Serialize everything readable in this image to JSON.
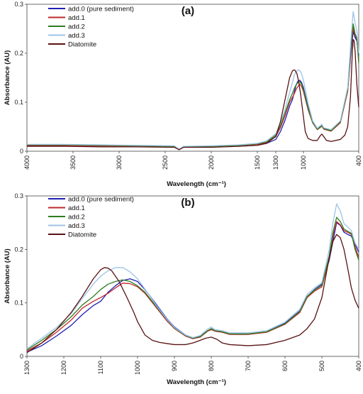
{
  "chart_data": [
    {
      "type": "line",
      "panel_label": "(a)",
      "xlabel": "Wavelength (cm⁻¹)",
      "ylabel": "Absorbance (AU)",
      "x_reversed": true,
      "xlim": [
        4000,
        400
      ],
      "ylim": [
        0,
        0.3
      ],
      "x_ticks": [
        4000,
        3500,
        3000,
        2500,
        2000,
        1500,
        1300,
        1000,
        400
      ],
      "x_tick_labels": [
        "4000",
        "3500",
        "3000",
        "2500",
        "2000",
        "1500",
        "1300",
        "1000",
        "400"
      ],
      "y_ticks": [
        0,
        0.1,
        0.2,
        0.3
      ],
      "y_tick_labels": [
        "0",
        "0.1",
        "0.2",
        "0.3"
      ],
      "legend_position": "top-left",
      "series": [
        {
          "name": "add.0 (pure sediment)",
          "color": "#1f1fb4",
          "x": [
            4000,
            3600,
            3200,
            2800,
            2400,
            2350,
            2300,
            2000,
            1700,
            1500,
            1400,
            1300,
            1250,
            1200,
            1150,
            1120,
            1100,
            1080,
            1060,
            1040,
            1020,
            1000,
            950,
            900,
            850,
            800,
            780,
            700,
            600,
            520,
            480,
            460,
            440,
            420,
            400
          ],
          "y": [
            0.012,
            0.012,
            0.011,
            0.011,
            0.01,
            0.004,
            0.009,
            0.01,
            0.012,
            0.014,
            0.016,
            0.024,
            0.04,
            0.063,
            0.092,
            0.105,
            0.12,
            0.135,
            0.143,
            0.145,
            0.14,
            0.13,
            0.09,
            0.06,
            0.045,
            0.052,
            0.046,
            0.042,
            0.06,
            0.125,
            0.21,
            0.245,
            0.232,
            0.225,
            0.195
          ]
        },
        {
          "name": "add.1",
          "color": "#c0282a",
          "x": [
            4000,
            3600,
            3200,
            2800,
            2400,
            2350,
            2300,
            2000,
            1700,
            1500,
            1400,
            1300,
            1250,
            1200,
            1150,
            1120,
            1100,
            1080,
            1060,
            1040,
            1020,
            1000,
            950,
            900,
            850,
            800,
            780,
            700,
            600,
            520,
            480,
            460,
            440,
            420,
            400
          ],
          "y": [
            0.012,
            0.012,
            0.011,
            0.011,
            0.01,
            0.004,
            0.009,
            0.01,
            0.012,
            0.014,
            0.018,
            0.03,
            0.048,
            0.072,
            0.1,
            0.11,
            0.117,
            0.126,
            0.132,
            0.137,
            0.132,
            0.122,
            0.085,
            0.058,
            0.044,
            0.051,
            0.045,
            0.041,
            0.058,
            0.122,
            0.22,
            0.252,
            0.236,
            0.228,
            0.185
          ]
        },
        {
          "name": "add.2",
          "color": "#2e7d1f",
          "x": [
            4000,
            3600,
            3200,
            2800,
            2400,
            2350,
            2300,
            2000,
            1700,
            1500,
            1400,
            1300,
            1250,
            1200,
            1150,
            1120,
            1100,
            1080,
            1060,
            1040,
            1020,
            1000,
            950,
            900,
            850,
            800,
            780,
            700,
            600,
            520,
            480,
            460,
            440,
            420,
            400
          ],
          "y": [
            0.013,
            0.013,
            0.012,
            0.011,
            0.01,
            0.004,
            0.009,
            0.01,
            0.012,
            0.015,
            0.019,
            0.033,
            0.052,
            0.078,
            0.105,
            0.118,
            0.128,
            0.135,
            0.14,
            0.142,
            0.137,
            0.126,
            0.088,
            0.059,
            0.045,
            0.052,
            0.046,
            0.042,
            0.06,
            0.126,
            0.225,
            0.26,
            0.24,
            0.23,
            0.18
          ]
        },
        {
          "name": "add.3",
          "color": "#9ec3e8",
          "x": [
            4000,
            3600,
            3200,
            2800,
            2400,
            2350,
            2300,
            2000,
            1700,
            1500,
            1400,
            1300,
            1250,
            1200,
            1150,
            1120,
            1100,
            1080,
            1060,
            1040,
            1020,
            1000,
            950,
            900,
            850,
            800,
            780,
            700,
            600,
            520,
            480,
            460,
            440,
            420,
            400
          ],
          "y": [
            0.014,
            0.014,
            0.013,
            0.012,
            0.011,
            0.004,
            0.01,
            0.011,
            0.013,
            0.016,
            0.021,
            0.036,
            0.058,
            0.085,
            0.12,
            0.14,
            0.155,
            0.162,
            0.166,
            0.165,
            0.158,
            0.145,
            0.098,
            0.062,
            0.047,
            0.055,
            0.048,
            0.044,
            0.062,
            0.13,
            0.24,
            0.285,
            0.262,
            0.245,
            0.2
          ]
        },
        {
          "name": "Diatomite",
          "color": "#5a1212",
          "x": [
            4000,
            3600,
            3200,
            2800,
            2400,
            2350,
            2300,
            2000,
            1700,
            1500,
            1400,
            1300,
            1250,
            1200,
            1150,
            1120,
            1100,
            1090,
            1070,
            1050,
            1030,
            1000,
            980,
            950,
            900,
            850,
            820,
            800,
            780,
            750,
            700,
            600,
            550,
            520,
            490,
            470,
            460,
            450,
            440,
            420,
            400
          ],
          "y": [
            0.01,
            0.01,
            0.009,
            0.009,
            0.008,
            0.003,
            0.008,
            0.008,
            0.01,
            0.012,
            0.016,
            0.03,
            0.06,
            0.105,
            0.15,
            0.164,
            0.166,
            0.165,
            0.158,
            0.14,
            0.115,
            0.07,
            0.04,
            0.026,
            0.022,
            0.022,
            0.031,
            0.035,
            0.03,
            0.022,
            0.02,
            0.024,
            0.033,
            0.05,
            0.11,
            0.2,
            0.228,
            0.225,
            0.205,
            0.135,
            0.09
          ]
        }
      ]
    },
    {
      "type": "line",
      "panel_label": "(b)",
      "xlabel": "Wavelength (cm⁻¹)",
      "ylabel": "Absorbance (AU)",
      "x_reversed": true,
      "xlim": [
        1300,
        400
      ],
      "ylim": [
        0,
        0.3
      ],
      "x_ticks": [
        1300,
        1200,
        1100,
        1000,
        900,
        800,
        700,
        600,
        500,
        400
      ],
      "x_tick_labels": [
        "1300",
        "1200",
        "1100",
        "1000",
        "900",
        "800",
        "700",
        "600",
        "500",
        "400"
      ],
      "y_ticks": [
        0,
        0.1,
        0.2,
        0.3
      ],
      "y_tick_labels": [
        "0",
        "0.1",
        "0.2",
        "0.3"
      ],
      "legend_position": "top-left",
      "series": [
        {
          "name": "add.0 (pure sediment)",
          "color": "#1f1fb4",
          "x": [
            1300,
            1260,
            1220,
            1180,
            1150,
            1120,
            1100,
            1080,
            1060,
            1040,
            1020,
            1000,
            980,
            950,
            920,
            900,
            870,
            850,
            830,
            810,
            800,
            790,
            770,
            750,
            700,
            650,
            600,
            560,
            540,
            520,
            500,
            480,
            470,
            460,
            450,
            440,
            430,
            420,
            410,
            400
          ],
          "y": [
            0.008,
            0.02,
            0.038,
            0.058,
            0.078,
            0.095,
            0.103,
            0.12,
            0.132,
            0.142,
            0.145,
            0.14,
            0.125,
            0.098,
            0.07,
            0.055,
            0.04,
            0.035,
            0.038,
            0.048,
            0.05,
            0.048,
            0.046,
            0.042,
            0.042,
            0.046,
            0.062,
            0.085,
            0.112,
            0.125,
            0.135,
            0.18,
            0.215,
            0.25,
            0.245,
            0.232,
            0.228,
            0.225,
            0.21,
            0.195
          ]
        },
        {
          "name": "add.1",
          "color": "#c0282a",
          "x": [
            1300,
            1260,
            1220,
            1180,
            1150,
            1120,
            1100,
            1080,
            1060,
            1040,
            1020,
            1000,
            980,
            950,
            920,
            900,
            870,
            850,
            830,
            810,
            800,
            790,
            770,
            750,
            700,
            650,
            600,
            560,
            540,
            520,
            500,
            480,
            470,
            460,
            450,
            440,
            430,
            420,
            410,
            400
          ],
          "y": [
            0.01,
            0.025,
            0.045,
            0.068,
            0.09,
            0.103,
            0.11,
            0.118,
            0.128,
            0.137,
            0.136,
            0.13,
            0.118,
            0.092,
            0.066,
            0.052,
            0.038,
            0.033,
            0.036,
            0.047,
            0.05,
            0.047,
            0.045,
            0.041,
            0.041,
            0.045,
            0.06,
            0.082,
            0.11,
            0.122,
            0.13,
            0.182,
            0.225,
            0.252,
            0.246,
            0.235,
            0.232,
            0.228,
            0.205,
            0.185
          ]
        },
        {
          "name": "add.2",
          "color": "#2e7d1f",
          "x": [
            1300,
            1260,
            1220,
            1180,
            1150,
            1120,
            1100,
            1080,
            1060,
            1040,
            1020,
            1000,
            980,
            950,
            920,
            900,
            870,
            850,
            830,
            810,
            800,
            790,
            770,
            750,
            700,
            650,
            600,
            560,
            540,
            520,
            500,
            480,
            470,
            460,
            450,
            440,
            430,
            420,
            410,
            400
          ],
          "y": [
            0.012,
            0.03,
            0.05,
            0.074,
            0.096,
            0.112,
            0.125,
            0.135,
            0.14,
            0.143,
            0.14,
            0.132,
            0.12,
            0.094,
            0.068,
            0.053,
            0.039,
            0.034,
            0.037,
            0.048,
            0.052,
            0.048,
            0.046,
            0.042,
            0.042,
            0.046,
            0.061,
            0.084,
            0.112,
            0.124,
            0.133,
            0.188,
            0.232,
            0.26,
            0.252,
            0.238,
            0.234,
            0.23,
            0.2,
            0.18
          ]
        },
        {
          "name": "add.3",
          "color": "#9ec3e8",
          "x": [
            1300,
            1260,
            1220,
            1180,
            1150,
            1120,
            1100,
            1080,
            1060,
            1040,
            1020,
            1000,
            980,
            950,
            920,
            900,
            870,
            850,
            830,
            810,
            800,
            790,
            770,
            750,
            700,
            650,
            600,
            560,
            540,
            520,
            500,
            480,
            470,
            460,
            450,
            440,
            430,
            420,
            410,
            400
          ],
          "y": [
            0.014,
            0.034,
            0.054,
            0.08,
            0.108,
            0.135,
            0.15,
            0.16,
            0.166,
            0.166,
            0.158,
            0.145,
            0.126,
            0.096,
            0.069,
            0.054,
            0.04,
            0.035,
            0.039,
            0.051,
            0.055,
            0.05,
            0.048,
            0.044,
            0.044,
            0.048,
            0.064,
            0.088,
            0.116,
            0.128,
            0.138,
            0.2,
            0.25,
            0.285,
            0.272,
            0.248,
            0.242,
            0.235,
            0.212,
            0.2
          ]
        },
        {
          "name": "Diatomite",
          "color": "#5a1212",
          "x": [
            1300,
            1260,
            1220,
            1180,
            1150,
            1120,
            1100,
            1090,
            1080,
            1070,
            1050,
            1030,
            1010,
            1000,
            980,
            960,
            940,
            920,
            900,
            870,
            850,
            830,
            815,
            800,
            785,
            770,
            750,
            700,
            650,
            600,
            560,
            540,
            520,
            500,
            480,
            470,
            460,
            450,
            440,
            430,
            420,
            410,
            400
          ],
          "y": [
            0.007,
            0.025,
            0.05,
            0.082,
            0.112,
            0.145,
            0.162,
            0.166,
            0.165,
            0.16,
            0.14,
            0.112,
            0.082,
            0.065,
            0.04,
            0.03,
            0.026,
            0.024,
            0.022,
            0.022,
            0.025,
            0.03,
            0.034,
            0.036,
            0.032,
            0.025,
            0.022,
            0.02,
            0.022,
            0.03,
            0.04,
            0.052,
            0.07,
            0.11,
            0.185,
            0.215,
            0.228,
            0.222,
            0.2,
            0.165,
            0.128,
            0.105,
            0.09
          ]
        }
      ]
    }
  ]
}
